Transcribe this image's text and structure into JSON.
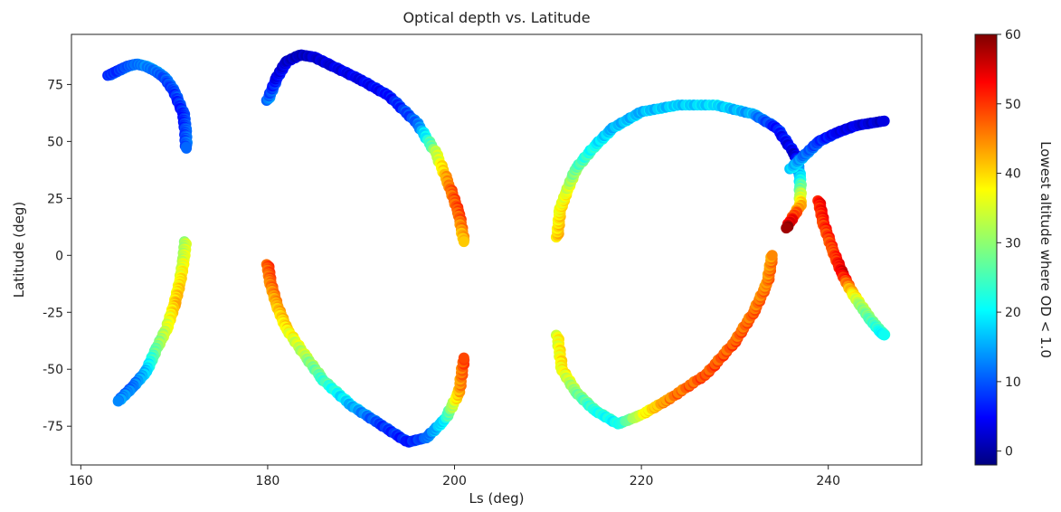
{
  "chart_data": {
    "type": "scatter",
    "title": "Optical depth vs. Latitude",
    "xlabel": "Ls (deg)",
    "ylabel": "Latitude (deg)",
    "xlim": [
      159,
      250
    ],
    "ylim": [
      -92,
      97
    ],
    "xticks": [
      160,
      180,
      200,
      220,
      240
    ],
    "yticks": [
      -75,
      -50,
      -25,
      0,
      25,
      50,
      75
    ],
    "colorbar": {
      "label": "Lowest altitude where OD < 1.0",
      "colormap": "jet",
      "range": [
        -2,
        60
      ],
      "ticks": [
        0,
        10,
        20,
        30,
        40,
        50,
        60
      ]
    },
    "grid": false,
    "segments": [
      {
        "points": [
          [
            163,
            79
          ],
          [
            164,
            81
          ],
          [
            165,
            83
          ],
          [
            166,
            84
          ],
          [
            167,
            83
          ],
          [
            168,
            81
          ],
          [
            169,
            78
          ],
          [
            170,
            72
          ],
          [
            171,
            62
          ],
          [
            171.2,
            55
          ],
          [
            171.3,
            47
          ]
        ],
        "c": [
          10,
          10,
          12,
          14,
          15,
          14,
          12,
          10,
          8,
          10,
          12
        ]
      },
      {
        "points": [
          [
            171.2,
            6
          ],
          [
            171,
            -2
          ],
          [
            170.6,
            -12
          ],
          [
            170,
            -22
          ],
          [
            169.2,
            -32
          ],
          [
            168,
            -42
          ],
          [
            167,
            -51
          ],
          [
            165.5,
            -58
          ],
          [
            164,
            -64
          ]
        ],
        "c": [
          32,
          34,
          38,
          40,
          34,
          28,
          18,
          12,
          14
        ]
      },
      {
        "points": [
          [
            180,
            68
          ],
          [
            181,
            78
          ],
          [
            182,
            85
          ],
          [
            183.5,
            88
          ],
          [
            185,
            87
          ],
          [
            187,
            83
          ],
          [
            190,
            77
          ],
          [
            193,
            70
          ],
          [
            196,
            58
          ],
          [
            198,
            45
          ],
          [
            199.5,
            30
          ],
          [
            200.5,
            18
          ],
          [
            201,
            6
          ]
        ],
        "c": [
          14,
          6,
          4,
          3,
          4,
          5,
          6,
          7,
          12,
          32,
          46,
          48,
          40
        ]
      },
      {
        "points": [
          [
            180,
            -4
          ],
          [
            180.3,
            -12
          ],
          [
            181,
            -22
          ],
          [
            182,
            -32
          ],
          [
            184,
            -44
          ],
          [
            186,
            -55
          ],
          [
            189,
            -66
          ],
          [
            192,
            -74
          ],
          [
            195,
            -82
          ],
          [
            197,
            -80
          ],
          [
            199,
            -72
          ],
          [
            200.5,
            -60
          ],
          [
            201,
            -45
          ]
        ],
        "c": [
          48,
          46,
          42,
          38,
          32,
          26,
          18,
          10,
          8,
          12,
          22,
          42,
          48
        ]
      },
      {
        "points": [
          [
            211,
            8
          ],
          [
            211.3,
            20
          ],
          [
            212,
            28
          ],
          [
            213,
            38
          ],
          [
            215,
            48
          ],
          [
            217,
            56
          ],
          [
            220,
            63
          ],
          [
            224,
            66
          ],
          [
            228,
            66
          ],
          [
            232,
            62
          ],
          [
            234.5,
            56
          ],
          [
            236.5,
            44
          ],
          [
            237,
            34
          ],
          [
            237,
            22
          ],
          [
            235.5,
            12
          ]
        ],
        "c": [
          40,
          38,
          36,
          28,
          22,
          18,
          18,
          19,
          20,
          16,
          8,
          4,
          20,
          40,
          58
        ]
      },
      {
        "points": [
          [
            236,
            38
          ],
          [
            237.5,
            44
          ],
          [
            239,
            50
          ],
          [
            241,
            54
          ],
          [
            243,
            57
          ],
          [
            246,
            59
          ]
        ],
        "c": [
          20,
          14,
          10,
          6,
          5,
          4
        ]
      },
      {
        "points": [
          [
            211,
            -35
          ],
          [
            211.5,
            -50
          ],
          [
            213,
            -60
          ],
          [
            215,
            -68
          ],
          [
            217.5,
            -74
          ],
          [
            220,
            -70
          ],
          [
            223,
            -63
          ],
          [
            227,
            -52
          ],
          [
            230,
            -38
          ],
          [
            232,
            -25
          ],
          [
            233.5,
            -12
          ],
          [
            234,
            0
          ]
        ],
        "c": [
          36,
          38,
          30,
          24,
          22,
          36,
          45,
          48,
          47,
          46,
          45,
          44
        ]
      },
      {
        "points": [
          [
            239,
            24
          ],
          [
            239.5,
            14
          ],
          [
            240.5,
            2
          ],
          [
            241.5,
            -8
          ],
          [
            242.5,
            -16
          ],
          [
            243.5,
            -22
          ],
          [
            244.5,
            -28
          ],
          [
            245.5,
            -33
          ],
          [
            246,
            -35
          ]
        ],
        "c": [
          52,
          50,
          48,
          54,
          40,
          32,
          28,
          24,
          22
        ]
      }
    ]
  }
}
